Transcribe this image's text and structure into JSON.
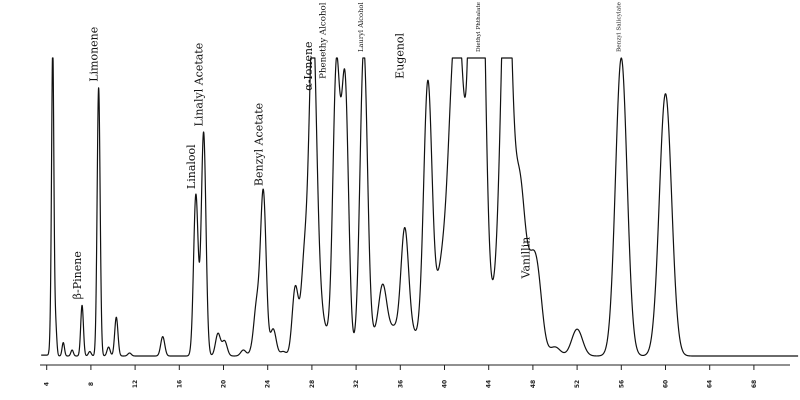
{
  "chart_data": {
    "type": "line",
    "title": "",
    "xlabel": "",
    "ylabel": "",
    "xlim": [
      3,
      70
    ],
    "ylim": [
      0,
      100
    ],
    "x_ticks": [
      4,
      8,
      12,
      16,
      20,
      24,
      28,
      32,
      36,
      40,
      44,
      48,
      52,
      56,
      60,
      64,
      68
    ],
    "grid": false,
    "line_color": "#111111",
    "peaks": [
      {
        "x": 4.4,
        "height": 10.5
      },
      {
        "x": 4.55,
        "height": 100
      },
      {
        "x": 4.8,
        "height": 10.8
      },
      {
        "x": 5.5,
        "height": 4.5
      },
      {
        "x": 6.3,
        "height": 2
      },
      {
        "x": 7.2,
        "height": 17
      },
      {
        "x": 7.9,
        "height": 1.5
      },
      {
        "x": 8.7,
        "height": 90
      },
      {
        "x": 9.6,
        "height": 3
      },
      {
        "x": 10.3,
        "height": 13
      },
      {
        "x": 11.5,
        "height": 1
      },
      {
        "x": 14.5,
        "height": 6.5
      },
      {
        "x": 17.5,
        "height": 54
      },
      {
        "x": 18.2,
        "height": 75
      },
      {
        "x": 19.5,
        "height": 7.5
      },
      {
        "x": 20.1,
        "height": 5
      },
      {
        "x": 21.8,
        "height": 2
      },
      {
        "x": 22.6,
        "height": 1.5
      },
      {
        "x": 23.0,
        "height": 16
      },
      {
        "x": 23.6,
        "height": 55
      },
      {
        "x": 24.5,
        "height": 9
      },
      {
        "x": 25.4,
        "height": 1.5
      },
      {
        "x": 26.5,
        "height": 23
      },
      {
        "x": 27.3,
        "height": 29
      },
      {
        "x": 27.8,
        "height": 28
      },
      {
        "x": 28.1,
        "height": 87
      },
      {
        "x": 28.5,
        "height": 25
      },
      {
        "x": 29.0,
        "height": 8
      },
      {
        "x": 29.5,
        "height": 4
      },
      {
        "x": 30.2,
        "height": 91
      },
      {
        "x": 30.5,
        "height": 7
      },
      {
        "x": 31.0,
        "height": 90
      },
      {
        "x": 32.3,
        "height": 5
      },
      {
        "x": 32.7,
        "height": 100
      },
      {
        "x": 33.3,
        "height": 4
      },
      {
        "x": 33.9,
        "height": 5
      },
      {
        "x": 34.4,
        "height": 20
      },
      {
        "x": 34.9,
        "height": 6
      },
      {
        "x": 35.5,
        "height": 7
      },
      {
        "x": 36.4,
        "height": 42
      },
      {
        "x": 37.2,
        "height": 5
      },
      {
        "x": 37.9,
        "height": 4
      },
      {
        "x": 38.5,
        "height": 90
      },
      {
        "x": 39.4,
        "height": 13
      },
      {
        "x": 39.9,
        "height": 20
      },
      {
        "x": 40.4,
        "height": 23
      },
      {
        "x": 40.8,
        "height": 64
      },
      {
        "x": 41.4,
        "height": 75
      },
      {
        "x": 41.7,
        "height": 12
      },
      {
        "x": 42.5,
        "height": 100
      },
      {
        "x": 42.9,
        "height": 100
      },
      {
        "x": 43.3,
        "height": 100
      },
      {
        "x": 43.6,
        "height": 15
      },
      {
        "x": 44.3,
        "height": 8
      },
      {
        "x": 44.9,
        "height": 15
      },
      {
        "x": 45.4,
        "height": 44
      },
      {
        "x": 45.7,
        "height": 100
      },
      {
        "x": 46.2,
        "height": 10
      },
      {
        "x": 46.8,
        "height": 48
      },
      {
        "x": 47.3,
        "height": 8
      },
      {
        "x": 47.8,
        "height": 17
      },
      {
        "x": 48.4,
        "height": 24
      },
      {
        "x": 50.0,
        "height": 3
      },
      {
        "x": 52.0,
        "height": 9
      },
      {
        "x": 56.0,
        "height": 100
      },
      {
        "x": 60.0,
        "height": 88
      }
    ],
    "annotations": [
      {
        "text": "β-Pinene",
        "x": 7.2,
        "height": 17
      },
      {
        "text": "Limonene",
        "x": 8.7,
        "height": 90
      },
      {
        "text": "Linalool",
        "x": 17.5,
        "height": 54
      },
      {
        "text": "Linalyl Acetate",
        "x": 18.2,
        "height": 75
      },
      {
        "text": "Benzyl Acetate",
        "x": 23.6,
        "height": 55
      },
      {
        "text": "α-Ionene",
        "x": 28.1,
        "height": 87
      },
      {
        "text": "Phenethy Alcohol",
        "x": 29.3,
        "height": 91
      },
      {
        "text": "Lauryl Alcohol",
        "x": 32.7,
        "height": 100
      },
      {
        "text": "Eugenol",
        "x": 36.4,
        "height": 91
      },
      {
        "text": "Diethyl Phthalate",
        "x": 43.3,
        "height": 100
      },
      {
        "text": "Vanillin",
        "x": 47.8,
        "height": 24
      },
      {
        "text": "Benzyl Salicylate",
        "x": 56.0,
        "height": 100
      }
    ]
  }
}
